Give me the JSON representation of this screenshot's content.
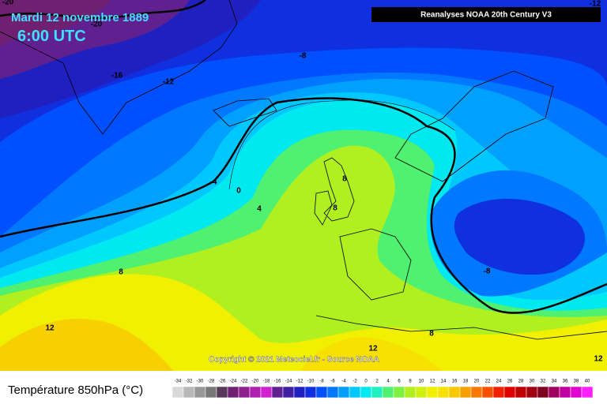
{
  "header": {
    "date": "Mardi 12 novembre 1889",
    "time": "6:00 UTC",
    "source": "Reanalyses NOAA 20th Century V3"
  },
  "map": {
    "contour_labels": [
      "-20",
      "-20",
      "-16",
      "-12",
      "-8",
      "-12",
      "-4",
      "0",
      "4",
      "8",
      "12",
      "8",
      "8",
      "-8",
      "8",
      "12",
      "12"
    ],
    "copyright": "Copyright © 2021 Meteociel.fr - Source NOAA"
  },
  "legend": {
    "title": "Température 850hPa (°C)",
    "scale": [
      {
        "label": "-34",
        "color": "#d8d8d8"
      },
      {
        "label": "-32",
        "color": "#b8b8b8"
      },
      {
        "label": "-30",
        "color": "#989898"
      },
      {
        "label": "-28",
        "color": "#787878"
      },
      {
        "label": "-26",
        "color": "#583858"
      },
      {
        "label": "-24",
        "color": "#702070"
      },
      {
        "label": "-22",
        "color": "#902090"
      },
      {
        "label": "-20",
        "color": "#b020b0"
      },
      {
        "label": "-18",
        "color": "#d020d0"
      },
      {
        "label": "-16",
        "color": "#602090"
      },
      {
        "label": "-14",
        "color": "#4020a0"
      },
      {
        "label": "-12",
        "color": "#2020c0"
      },
      {
        "label": "-10",
        "color": "#1030e0"
      },
      {
        "label": "-8",
        "color": "#0050ff"
      },
      {
        "label": "-6",
        "color": "#0078ff"
      },
      {
        "label": "-4",
        "color": "#00a0ff"
      },
      {
        "label": "-2",
        "color": "#00c8ff"
      },
      {
        "label": "0",
        "color": "#00e8f0"
      },
      {
        "label": "2",
        "color": "#20f0c0"
      },
      {
        "label": "4",
        "color": "#50f070"
      },
      {
        "label": "6",
        "color": "#80f040"
      },
      {
        "label": "8",
        "color": "#b0f020"
      },
      {
        "label": "10",
        "color": "#d0f010"
      },
      {
        "label": "12",
        "color": "#f0f000"
      },
      {
        "label": "14",
        "color": "#f8e000"
      },
      {
        "label": "16",
        "color": "#f8c800"
      },
      {
        "label": "18",
        "color": "#f8a000"
      },
      {
        "label": "20",
        "color": "#f87800"
      },
      {
        "label": "22",
        "color": "#f85000"
      },
      {
        "label": "24",
        "color": "#f02000"
      },
      {
        "label": "26",
        "color": "#e00000"
      },
      {
        "label": "28",
        "color": "#c00000"
      },
      {
        "label": "30",
        "color": "#a00010"
      },
      {
        "label": "32",
        "color": "#800020"
      },
      {
        "label": "34",
        "color": "#a00060"
      },
      {
        "label": "36",
        "color": "#c000a0"
      },
      {
        "label": "38",
        "color": "#e000d0"
      },
      {
        "label": "40",
        "color": "#ff20ff"
      }
    ]
  }
}
